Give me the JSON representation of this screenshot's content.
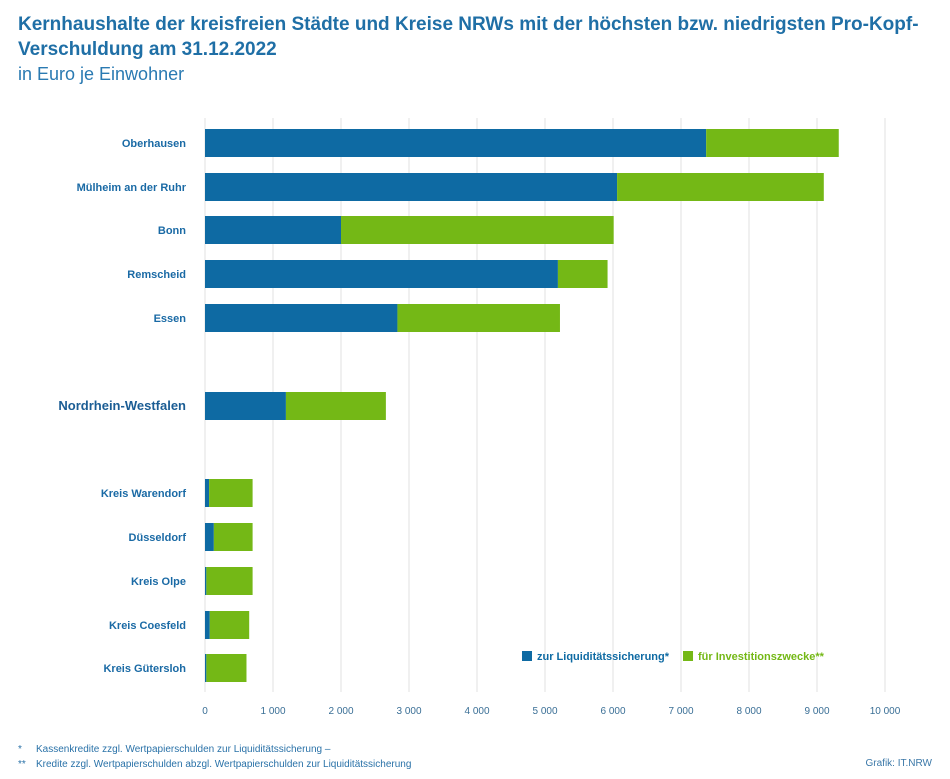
{
  "header": {
    "title": "Kernhaushalte der kreisfreien Städte und Kreise NRWs mit der höchsten bzw. niedrigsten Pro-Kopf-Verschuldung am 31.12.2022",
    "subtitle": "in Euro je Einwohner"
  },
  "colors": {
    "liquidity": "#0e6aa3",
    "investment": "#74b816",
    "grid": "#e2e2e2",
    "label": "#1a6aa5"
  },
  "chart_data": {
    "type": "bar",
    "orientation": "horizontal",
    "stacked": true,
    "categories": [
      "Oberhausen",
      "Mülheim an der Ruhr",
      "Bonn",
      "Remscheid",
      "Essen",
      "Nordrhein-Westfalen",
      "Kreis Warendorf",
      "Düsseldorf",
      "Kreis Olpe",
      "Kreis Coesfeld",
      "Kreis Gütersloh"
    ],
    "emphasized_category": "Nordrhein-Westfalen",
    "series": [
      {
        "name": "zur Liquiditätssicherung*",
        "color": "#0e6aa3",
        "values": [
          7370,
          6060,
          2000,
          5190,
          2830,
          1190,
          60,
          130,
          20,
          70,
          20
        ]
      },
      {
        "name": "für Investitionszwecke**",
        "color": "#74b816",
        "values": [
          1950,
          3040,
          4010,
          730,
          2390,
          1470,
          640,
          570,
          680,
          580,
          590
        ]
      }
    ],
    "xlim": [
      0,
      10000
    ],
    "xticks": [
      0,
      1000,
      2000,
      3000,
      4000,
      5000,
      6000,
      7000,
      8000,
      9000,
      10000
    ],
    "xtick_labels": [
      "0",
      "1 000",
      "2 000",
      "3 000",
      "4 000",
      "5 000",
      "6 000",
      "7 000",
      "8 000",
      "9 000",
      "10 000"
    ],
    "grid": "vertical",
    "legend_position": "bottom-right",
    "legend": [
      "zur Liquiditätssicherung*",
      "für Investitionszwecke**"
    ]
  },
  "footnotes": [
    {
      "mark": "*",
      "text": "Kassenkredite zzgl. Wertpapierschulden zur Liquiditätssicherung –"
    },
    {
      "mark": "**",
      "text": "Kredite zzgl. Wertpapierschulden abzgl. Wertpapierschulden zur Liquiditätssicherung"
    }
  ],
  "credit": "Grafik: IT.NRW"
}
